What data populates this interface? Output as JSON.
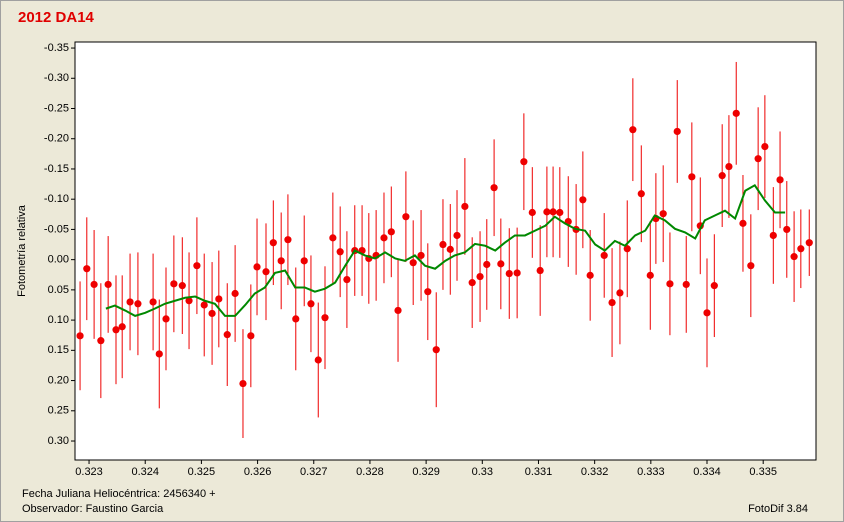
{
  "chart_data": {
    "type": "scatter",
    "title": "2012 DA14",
    "ylabel": "Fotometría relativa",
    "annotations": [
      "Fecha Juliana Heliocéntrica: 2456340 +",
      "Observador: Faustino  Garcia",
      "FotoDif 3.84"
    ],
    "xlim": [
      0.32275,
      0.33594
    ],
    "ylim": [
      0.3314,
      -0.36
    ],
    "xticks": [
      0.323,
      0.324,
      0.325,
      0.326,
      0.327,
      0.328,
      0.329,
      0.33,
      0.331,
      0.332,
      0.333,
      0.334,
      0.335
    ],
    "yticks": [
      {
        "value": -0.35,
        "label": "-0.35"
      },
      {
        "value": -0.3,
        "label": "-0.30"
      },
      {
        "value": -0.25,
        "label": "-0.25"
      },
      {
        "value": -0.2,
        "label": "-0.20"
      },
      {
        "value": -0.15,
        "label": "-0.15"
      },
      {
        "value": -0.1,
        "label": "-0.10"
      },
      {
        "value": -0.05,
        "label": "-0.05"
      },
      {
        "value": 0,
        "label": "0.00"
      },
      {
        "value": 0.05,
        "label": "0.05"
      },
      {
        "value": 0.1,
        "label": "0.10"
      },
      {
        "value": 0.15,
        "label": "0.15"
      },
      {
        "value": 0.2,
        "label": "0.20"
      },
      {
        "value": 0.25,
        "label": "0.25"
      },
      {
        "value": 0.3,
        "label": "0.30"
      }
    ],
    "grid": false,
    "series": [
      {
        "type": "scatter",
        "color": "#ee0000",
        "x": [
          0.32284,
          0.32296,
          0.32309,
          0.32321,
          0.32334,
          0.32348,
          0.32359,
          0.32373,
          0.32387,
          0.32414,
          0.32425,
          0.32437,
          0.32451,
          0.32466,
          0.32478,
          0.32492,
          0.32505,
          0.32519,
          0.32531,
          0.32546,
          0.3256,
          0.32574,
          0.32588,
          0.32599,
          0.32615,
          0.32628,
          0.32642,
          0.32654,
          0.32668,
          0.32683,
          0.32695,
          0.32708,
          0.3272,
          0.32734,
          0.32747,
          0.32759,
          0.32773,
          0.32786,
          0.32798,
          0.32811,
          0.32825,
          0.32838,
          0.3285,
          0.32864,
          0.32877,
          0.32891,
          0.32903,
          0.32918,
          0.3293,
          0.32943,
          0.32955,
          0.32969,
          0.32982,
          0.32996,
          0.33008,
          0.33021,
          0.33033,
          0.33048,
          0.33062,
          0.33074,
          0.33089,
          0.33103,
          0.33115,
          0.33126,
          0.33138,
          0.33153,
          0.33167,
          0.33179,
          0.33192,
          0.33217,
          0.33231,
          0.33245,
          0.33258,
          0.33268,
          0.33283,
          0.33299,
          0.33309,
          0.33322,
          0.33334,
          0.33347,
          0.33363,
          0.33373,
          0.33388,
          0.334,
          0.33413,
          0.33427,
          0.33439,
          0.33452,
          0.33464,
          0.33478,
          0.33491,
          0.33503,
          0.33518,
          0.3353,
          0.33542,
          0.33555,
          0.33567,
          0.33582
        ],
        "values": [
          0.126,
          0.015,
          0.041,
          0.134,
          0.041,
          0.116,
          0.111,
          0.07,
          0.073,
          0.07,
          0.156,
          0.098,
          0.04,
          0.043,
          0.068,
          0.01,
          0.075,
          0.089,
          0.065,
          0.124,
          0.056,
          0.205,
          0.126,
          0.012,
          0.02,
          -0.028,
          0.002,
          -0.033,
          0.098,
          0.002,
          0.073,
          0.166,
          0.096,
          -0.036,
          -0.013,
          0.033,
          -0.015,
          -0.015,
          -0.002,
          -0.007,
          -0.036,
          -0.046,
          0.084,
          -0.071,
          0.005,
          -0.007,
          0.053,
          0.149,
          -0.025,
          -0.017,
          -0.04,
          -0.088,
          0.038,
          0.028,
          0.008,
          -0.119,
          0.007,
          0.023,
          0.022,
          -0.162,
          -0.078,
          0.018,
          -0.079,
          -0.079,
          -0.078,
          -0.063,
          -0.05,
          -0.099,
          0.026,
          -0.007,
          0.071,
          0.055,
          -0.018,
          -0.215,
          -0.109,
          0.026,
          -0.068,
          -0.076,
          0.04,
          -0.212,
          0.041,
          -0.137,
          -0.056,
          0.088,
          0.043,
          -0.139,
          -0.154,
          -0.242,
          -0.06,
          0.01,
          -0.167,
          -0.187,
          -0.04,
          -0.132,
          -0.05,
          -0.005,
          -0.018,
          -0.028
        ],
        "errors": [
          0.09,
          0.085,
          0.09,
          0.095,
          0.08,
          0.09,
          0.085,
          0.08,
          0.085,
          0.08,
          0.09,
          0.085,
          0.08,
          0.08,
          0.08,
          0.08,
          0.085,
          0.085,
          0.08,
          0.085,
          0.08,
          0.09,
          0.085,
          0.08,
          0.08,
          0.07,
          0.08,
          0.075,
          0.085,
          0.075,
          0.08,
          0.095,
          0.085,
          0.075,
          0.075,
          0.08,
          0.075,
          0.075,
          0.075,
          0.075,
          0.075,
          0.075,
          0.085,
          0.075,
          0.07,
          0.075,
          0.08,
          0.095,
          0.075,
          0.075,
          0.075,
          0.08,
          0.075,
          0.075,
          0.075,
          0.08,
          0.075,
          0.075,
          0.075,
          0.08,
          0.075,
          0.075,
          0.075,
          0.075,
          0.075,
          0.075,
          0.075,
          0.08,
          0.075,
          0.07,
          0.09,
          0.085,
          0.08,
          0.085,
          0.08,
          0.09,
          0.075,
          0.08,
          0.085,
          0.085,
          0.08,
          0.09,
          0.08,
          0.09,
          0.085,
          0.085,
          0.085,
          0.085,
          0.08,
          0.085,
          0.085,
          0.085,
          0.08,
          0.08,
          0.08,
          0.075,
          0.065,
          0.055
        ]
      },
      {
        "type": "line",
        "color": "#008800",
        "x": [
          0.3233,
          0.32346,
          0.32364,
          0.32382,
          0.324,
          0.32417,
          0.32435,
          0.32453,
          0.32471,
          0.32489,
          0.32506,
          0.32524,
          0.32542,
          0.3256,
          0.32578,
          0.32595,
          0.32613,
          0.32631,
          0.32649,
          0.32667,
          0.32684,
          0.32702,
          0.3272,
          0.32738,
          0.32756,
          0.32773,
          0.32791,
          0.32809,
          0.32827,
          0.32845,
          0.32862,
          0.3288,
          0.32898,
          0.32916,
          0.32934,
          0.32951,
          0.32969,
          0.32987,
          0.33005,
          0.33023,
          0.3304,
          0.33058,
          0.33076,
          0.33094,
          0.33112,
          0.33129,
          0.33147,
          0.33165,
          0.33183,
          0.33201,
          0.33218,
          0.33236,
          0.33254,
          0.33272,
          0.3329,
          0.33307,
          0.33325,
          0.33343,
          0.33361,
          0.33379,
          0.33396,
          0.33414,
          0.33432,
          0.3345,
          0.33468,
          0.33485,
          0.33503,
          0.33521,
          0.33539
        ],
        "values": [
          0.081,
          0.076,
          0.084,
          0.093,
          0.088,
          0.081,
          0.073,
          0.068,
          0.063,
          0.061,
          0.068,
          0.073,
          0.093,
          0.093,
          0.075,
          0.056,
          0.046,
          0.022,
          0.018,
          0.046,
          0.046,
          0.053,
          0.048,
          0.038,
          0.01,
          -0.015,
          -0.007,
          -0.002,
          -0.012,
          -0.002,
          0.002,
          -0.007,
          0.01,
          0.015,
          0.002,
          -0.007,
          -0.012,
          -0.026,
          -0.023,
          -0.015,
          -0.028,
          -0.04,
          -0.04,
          -0.048,
          -0.056,
          -0.071,
          -0.06,
          -0.051,
          -0.048,
          -0.025,
          -0.015,
          -0.031,
          -0.023,
          -0.04,
          -0.048,
          -0.073,
          -0.065,
          -0.051,
          -0.045,
          -0.035,
          -0.065,
          -0.073,
          -0.081,
          -0.068,
          -0.114,
          -0.123,
          -0.098,
          -0.078,
          -0.078
        ]
      }
    ]
  }
}
